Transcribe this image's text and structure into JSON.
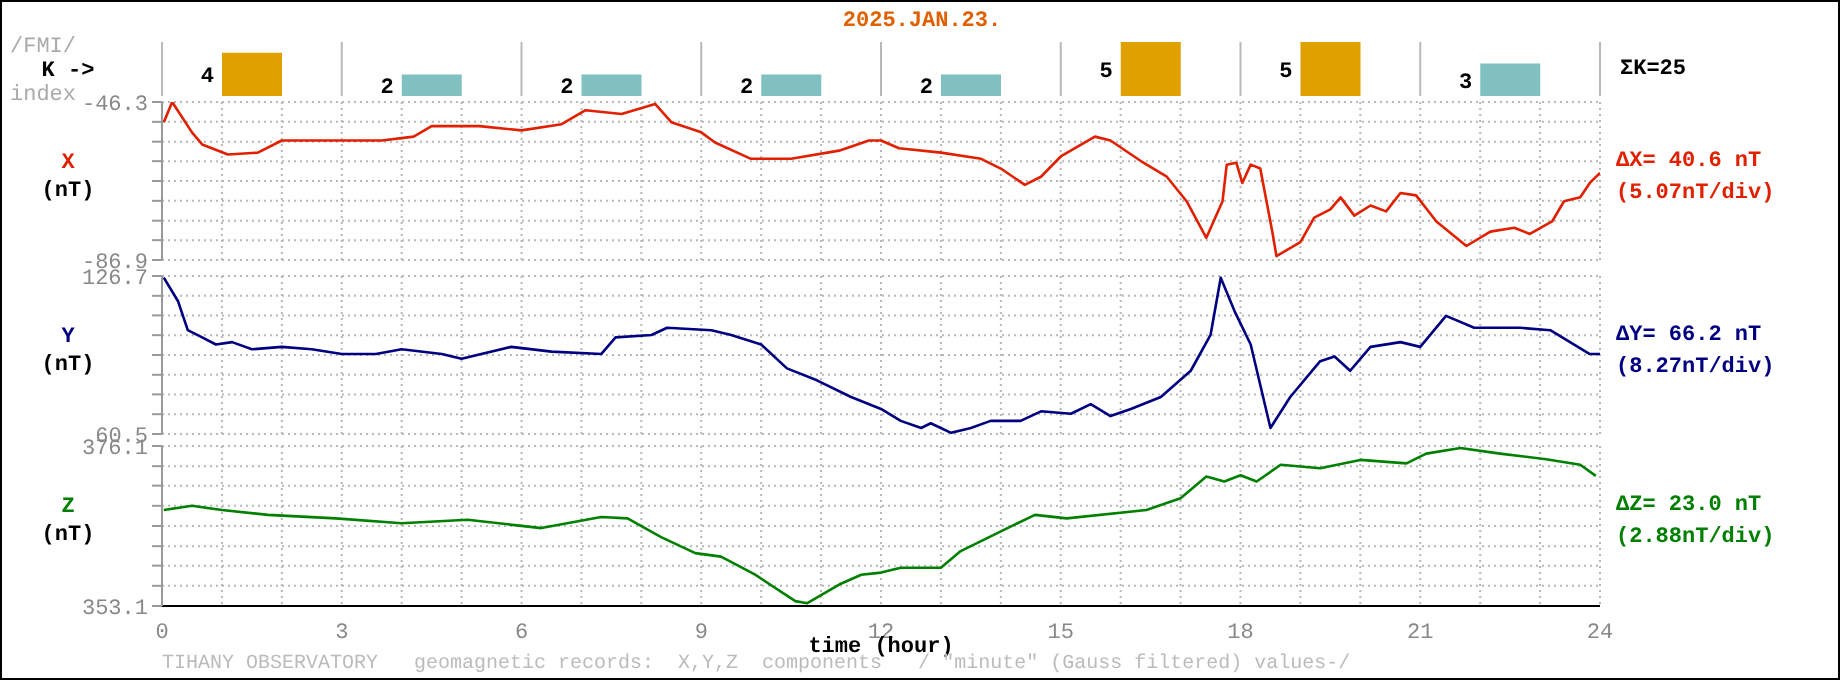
{
  "chart_data": [
    {
      "type": "bar",
      "title": "2025.JAN.23.",
      "ylabel": "K ->",
      "annotations": [
        "/FMI/",
        "index",
        "ΣK=25"
      ],
      "x": [
        1.5,
        4.5,
        7.5,
        10.5,
        13.5,
        16.5,
        19.5,
        22.5
      ],
      "values": [
        4,
        2,
        2,
        2,
        2,
        5,
        5,
        3
      ],
      "colors": [
        "#e0a000",
        "#80c0c0",
        "#80c0c0",
        "#80c0c0",
        "#80c0c0",
        "#e0a000",
        "#e0a000",
        "#80c0c0"
      ],
      "data_labels": true,
      "xlim": [
        0,
        24
      ],
      "xticks": [
        0,
        3,
        6,
        9,
        12,
        15,
        18,
        21,
        24
      ],
      "grid": "x",
      "tick_labels": false
    },
    {
      "type": "line",
      "ylabel": "X (nT)",
      "annotations": [
        "ΔX= 40.6 nT",
        "(5.07nT/div)"
      ],
      "color": "#e02000",
      "x": [
        0.03,
        0.17,
        0.5,
        0.67,
        1.1,
        1.6,
        2,
        3,
        3.67,
        4.2,
        4.5,
        5.3,
        6,
        6.67,
        7.07,
        7.67,
        8.23,
        8.5,
        9,
        9.23,
        9.83,
        10.5,
        11.3,
        11.8,
        12,
        12.3,
        13,
        13.67,
        14,
        14.4,
        14.67,
        15,
        15.57,
        15.83,
        16.33,
        16.77,
        17.1,
        17.43,
        17.7,
        17.77,
        17.93,
        18.03,
        18.17,
        18.33,
        18.53,
        18.6,
        19,
        19.23,
        19.5,
        19.67,
        19.9,
        20.17,
        20.43,
        20.67,
        20.93,
        21.27,
        21.77,
        22.17,
        22.57,
        22.83,
        23.2,
        23.4,
        23.67,
        23.83,
        24
      ],
      "values": [
        -51.5,
        -46.3,
        -54.1,
        -57.2,
        -59.8,
        -59.3,
        -56.2,
        -56.2,
        -56.2,
        -55.2,
        -52.5,
        -52.5,
        -53.6,
        -52,
        -48.4,
        -49.4,
        -46.8,
        -51.5,
        -54.1,
        -56.7,
        -60.9,
        -60.9,
        -58.8,
        -56.2,
        -56.2,
        -58.2,
        -59.3,
        -60.9,
        -63.4,
        -67.6,
        -65.5,
        -60.3,
        -55.2,
        -56.2,
        -61.4,
        -65.5,
        -71.8,
        -81.2,
        -71.8,
        -62.4,
        -61.9,
        -67.1,
        -62.4,
        -63.4,
        -79.6,
        -85.9,
        -82.3,
        -76,
        -73.9,
        -70.8,
        -75.5,
        -72.9,
        -74.4,
        -69.7,
        -70.3,
        -77,
        -83.3,
        -79.6,
        -78.6,
        -80.2,
        -77,
        -71.8,
        -70.8,
        -67.1,
        -64.5
      ],
      "xlim": [
        0,
        24
      ],
      "xticks": [
        0,
        {
          "value": 1,
          "label": null
        },
        {
          "value": 2,
          "label": null
        },
        3,
        {
          "value": 4,
          "label": null
        },
        {
          "value": 5,
          "label": null
        },
        6,
        {
          "value": 7,
          "label": null
        },
        {
          "value": 8,
          "label": null
        },
        9,
        {
          "value": 10,
          "label": null
        },
        {
          "value": 11,
          "label": null
        },
        12,
        {
          "value": 13,
          "label": null
        },
        {
          "value": 14,
          "label": null
        },
        15,
        {
          "value": 16,
          "label": null
        },
        {
          "value": 17,
          "label": null
        },
        18,
        {
          "value": 19,
          "label": null
        },
        {
          "value": 20,
          "label": null
        },
        21,
        {
          "value": 22,
          "label": null
        },
        {
          "value": 23,
          "label": null
        },
        24
      ],
      "ylim": [
        -86.9,
        -46.3
      ],
      "yticks": [
        -86.9,
        {
          "value": -81.8,
          "label": null
        },
        {
          "value": -76.8,
          "label": null
        },
        {
          "value": -71.7,
          "label": null
        },
        {
          "value": -66.6,
          "label": null
        },
        {
          "value": -61.5,
          "label": null
        },
        {
          "value": -56.5,
          "label": null
        },
        {
          "value": -51.4,
          "label": null
        },
        -46.3
      ],
      "grid": true,
      "tick_labels": "y"
    },
    {
      "type": "line",
      "ylabel": "Y (nT)",
      "annotations": [
        "ΔY= 66.2 nT",
        "(8.27nT/div)"
      ],
      "color": "#000080",
      "x": [
        0.03,
        0.27,
        0.43,
        0.67,
        0.9,
        1.17,
        1.5,
        2,
        2.5,
        3,
        3.57,
        4,
        4.67,
        5,
        5.83,
        6.5,
        7.33,
        7.57,
        8.17,
        8.43,
        9.17,
        9.5,
        10,
        10.43,
        10.93,
        11.5,
        12,
        12.33,
        12.67,
        12.83,
        13.17,
        13.5,
        13.83,
        14.33,
        14.67,
        15.17,
        15.5,
        15.83,
        16.17,
        16.67,
        17.17,
        17.5,
        17.67,
        17.9,
        18.17,
        18.5,
        18.83,
        19.33,
        19.57,
        19.83,
        20.17,
        20.67,
        21,
        21.43,
        21.9,
        22.67,
        23.17,
        23.5,
        23.83,
        24
      ],
      "values": [
        126,
        116,
        104,
        101,
        98,
        99,
        96,
        97,
        96,
        94,
        94,
        96,
        94,
        92,
        97,
        95,
        94,
        101,
        102,
        105,
        104,
        102,
        98,
        88,
        83,
        76,
        71,
        66,
        63,
        65,
        61,
        63,
        66,
        66,
        70,
        69,
        73,
        68,
        71,
        76,
        87,
        102,
        126,
        112,
        98,
        63,
        76,
        91,
        93,
        87,
        97,
        99,
        97,
        110,
        105,
        105,
        104,
        99,
        94,
        94
      ],
      "xlim": [
        0,
        24
      ],
      "xticks": [
        0,
        {
          "value": 1,
          "label": null
        },
        {
          "value": 2,
          "label": null
        },
        3,
        {
          "value": 4,
          "label": null
        },
        {
          "value": 5,
          "label": null
        },
        6,
        {
          "value": 7,
          "label": null
        },
        {
          "value": 8,
          "label": null
        },
        9,
        {
          "value": 10,
          "label": null
        },
        {
          "value": 11,
          "label": null
        },
        12,
        {
          "value": 13,
          "label": null
        },
        {
          "value": 14,
          "label": null
        },
        15,
        {
          "value": 16,
          "label": null
        },
        {
          "value": 17,
          "label": null
        },
        18,
        {
          "value": 19,
          "label": null
        },
        {
          "value": 20,
          "label": null
        },
        21,
        {
          "value": 22,
          "label": null
        },
        {
          "value": 23,
          "label": null
        },
        24
      ],
      "ylim": [
        60.5,
        126.7
      ],
      "yticks": [
        60.5,
        {
          "value": 68.8,
          "label": null
        },
        {
          "value": 77.1,
          "label": null
        },
        {
          "value": 85.3,
          "label": null
        },
        {
          "value": 93.6,
          "label": null
        },
        {
          "value": 101.9,
          "label": null
        },
        {
          "value": 110.2,
          "label": null
        },
        {
          "value": 118.4,
          "label": null
        },
        126.7
      ],
      "grid": true,
      "tick_labels": "y"
    },
    {
      "type": "line",
      "ylabel": "Z (nT)",
      "xlabel": "time (hour)",
      "annotations": [
        "ΔZ= 23.0 nT",
        "(2.88nT/div)",
        "TIHANY OBSERVATORY   geomagnetic records:  X,Y,Z  components   / \"minute\" (Gauss filtered) values-/"
      ],
      "color": "#008000",
      "x": [
        0.03,
        0.5,
        1,
        1.77,
        2.9,
        4,
        5.1,
        6.33,
        7.33,
        7.77,
        8.33,
        8.9,
        9.33,
        9.9,
        10.57,
        10.77,
        11.33,
        11.67,
        12,
        12.33,
        13,
        13.33,
        14.23,
        14.57,
        15.1,
        16.43,
        17,
        17.43,
        17.73,
        18,
        18.27,
        18.67,
        19.33,
        20,
        20.77,
        21.1,
        21.67,
        22.33,
        23.1,
        23.67,
        23.93
      ],
      "values": [
        366.9,
        367.5,
        366.9,
        366.2,
        365.7,
        365,
        365.5,
        364.3,
        365.9,
        365.7,
        363,
        360.7,
        360.2,
        357.6,
        353.8,
        353.5,
        356.3,
        357.6,
        357.9,
        358.6,
        358.6,
        361,
        364.8,
        366.2,
        365.7,
        366.9,
        368.6,
        371.7,
        371,
        371.9,
        371,
        373.4,
        372.9,
        374.1,
        373.6,
        375,
        375.8,
        375,
        374.2,
        373.4,
        371.8
      ],
      "xlim": [
        0,
        24
      ],
      "xticks": [
        0,
        {
          "value": 1,
          "label": null
        },
        {
          "value": 2,
          "label": null
        },
        3,
        {
          "value": 4,
          "label": null
        },
        {
          "value": 5,
          "label": null
        },
        6,
        {
          "value": 7,
          "label": null
        },
        {
          "value": 8,
          "label": null
        },
        9,
        {
          "value": 10,
          "label": null
        },
        {
          "value": 11,
          "label": null
        },
        12,
        {
          "value": 13,
          "label": null
        },
        {
          "value": 14,
          "label": null
        },
        15,
        {
          "value": 16,
          "label": null
        },
        {
          "value": 17,
          "label": null
        },
        18,
        {
          "value": 19,
          "label": null
        },
        {
          "value": 20,
          "label": null
        },
        21,
        {
          "value": 22,
          "label": null
        },
        {
          "value": 23,
          "label": null
        },
        24
      ],
      "ylim": [
        353.1,
        376.1
      ],
      "yticks": [
        353.1,
        {
          "value": 356.0,
          "label": null
        },
        {
          "value": 358.9,
          "label": null
        },
        {
          "value": 361.7,
          "label": null
        },
        {
          "value": 364.6,
          "label": null
        },
        {
          "value": 367.5,
          "label": null
        },
        {
          "value": 370.4,
          "label": null
        },
        {
          "value": 373.2,
          "label": null
        },
        376.1
      ],
      "grid": true
    }
  ]
}
